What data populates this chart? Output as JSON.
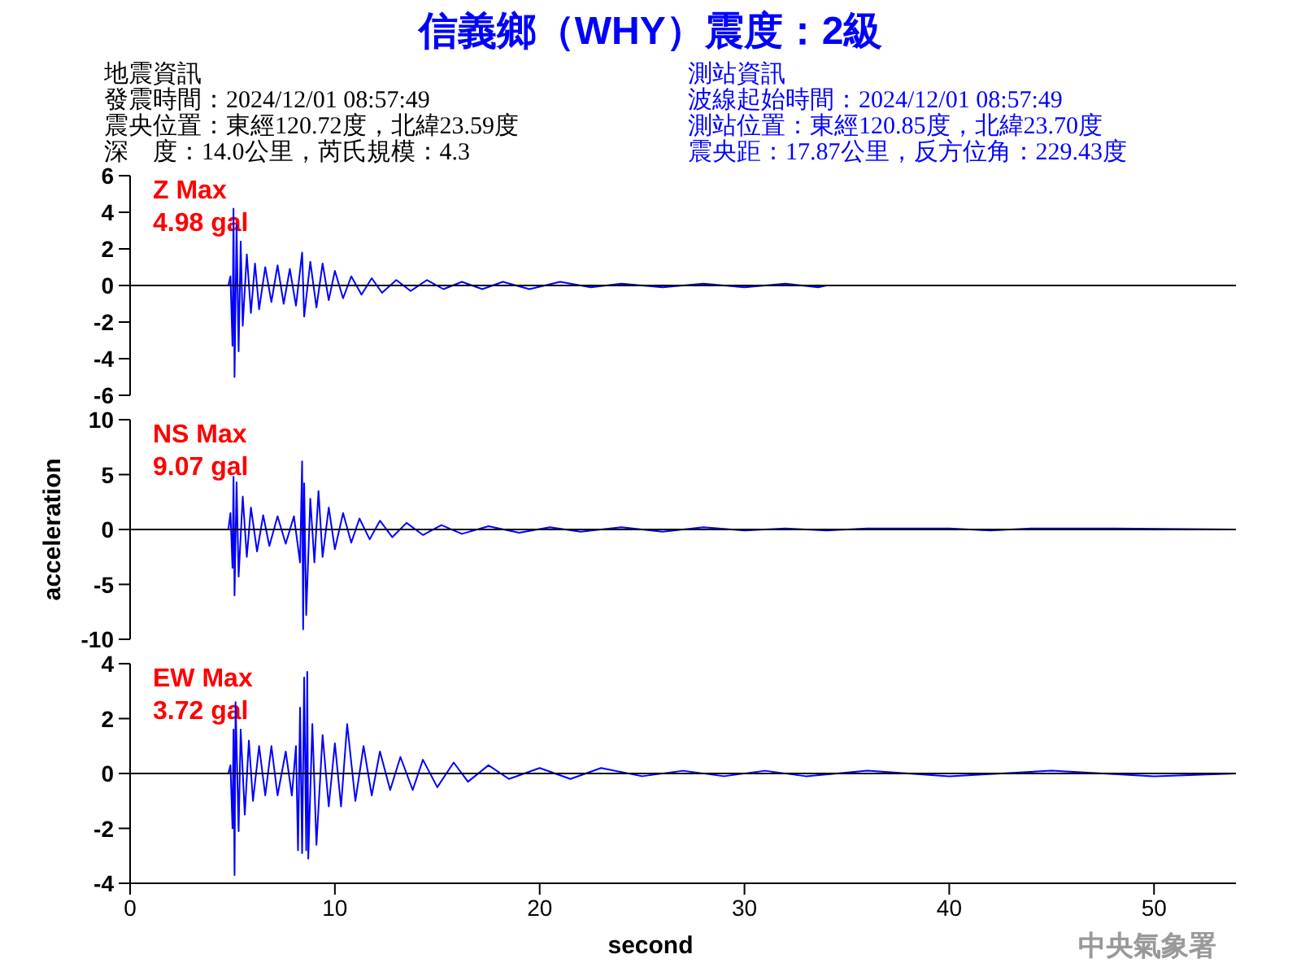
{
  "chart_data": [
    {
      "type": "line",
      "title": "信義鄉（WHY）震度：2級",
      "annotations": [
        "Z Max\n4.98 gal",
        "地震資訊",
        "發震時間：2024/12/01 08:57:49",
        "震央位置：東經120.72度，北緯23.59度",
        "深　度：14.0公里，芮氏規模：4.3",
        "測站資訊",
        "波線起始時間：2024/12/01 08:57:49",
        "測站位置：東經120.85度，北緯23.70度",
        "震央距：17.87公里，反方位角：229.43度"
      ],
      "x": [
        0,
        4.8,
        4.9,
        5.0,
        5.05,
        5.1,
        5.2,
        5.3,
        5.4,
        5.5,
        5.7,
        5.9,
        6.1,
        6.3,
        6.6,
        6.9,
        7.2,
        7.5,
        7.8,
        8.1,
        8.4,
        8.5,
        8.8,
        9.1,
        9.4,
        9.7,
        10.0,
        10.4,
        10.8,
        11.3,
        11.8,
        12.3,
        13,
        13.7,
        14.5,
        15.3,
        16.2,
        17.2,
        18.2,
        19.5,
        21,
        22.5,
        24,
        26,
        28,
        30,
        32,
        33.6,
        34,
        54
      ],
      "series": [
        {
          "color": "#0000ff",
          "values": [
            0,
            0,
            0.5,
            -3.3,
            4.2,
            -5.0,
            3.3,
            -3.6,
            2.4,
            -2.2,
            1.7,
            -1.5,
            1.2,
            -1.3,
            1.0,
            -0.9,
            1.1,
            -1.0,
            0.9,
            -1.1,
            1.8,
            -1.7,
            1.3,
            -1.2,
            1.2,
            -0.8,
            0.8,
            -0.7,
            0.5,
            -0.5,
            0.4,
            -0.4,
            0.3,
            -0.3,
            0.3,
            -0.2,
            0.2,
            -0.2,
            0.2,
            -0.2,
            0.2,
            -0.1,
            0.1,
            -0.1,
            0.1,
            -0.1,
            0.1,
            -0.1,
            0,
            0
          ]
        }
      ],
      "xlim": [
        0,
        54
      ],
      "ylim": [
        -6,
        6
      ],
      "yticks": [
        -6,
        -4,
        -2,
        0,
        2,
        4,
        6
      ],
      "tick_labels": "y",
      "ref_lines": [
        {
          "axis": "y",
          "value": 0,
          "color": "#000000"
        }
      ]
    },
    {
      "type": "line",
      "ylabel": "acceleration",
      "annotations": [
        "NS Max\n9.07 gal"
      ],
      "x": [
        0,
        4.8,
        4.9,
        5.0,
        5.05,
        5.1,
        5.2,
        5.3,
        5.5,
        5.7,
        5.9,
        6.2,
        6.5,
        6.8,
        7.2,
        7.6,
        8.0,
        8.3,
        8.4,
        8.45,
        8.5,
        8.6,
        8.8,
        9.0,
        9.2,
        9.4,
        9.7,
        10,
        10.4,
        10.8,
        11.2,
        11.7,
        12.2,
        12.8,
        13.5,
        14.3,
        15.2,
        16.2,
        17.5,
        19,
        20.5,
        22,
        24,
        26,
        28,
        30,
        32,
        34,
        36,
        38,
        40,
        42,
        44,
        46,
        48,
        54
      ],
      "series": [
        {
          "color": "#0000ff",
          "values": [
            0,
            0,
            1.5,
            -3.5,
            4.8,
            -6.0,
            4.3,
            -4.3,
            3.0,
            -2.5,
            2.0,
            -2.0,
            1.3,
            -1.5,
            1.2,
            -1.3,
            1.2,
            -3.0,
            6.2,
            -9.1,
            4.2,
            -7.8,
            2.8,
            -3.0,
            3.5,
            -2.5,
            2.0,
            -1.8,
            1.5,
            -1.2,
            1.0,
            -0.9,
            0.8,
            -0.7,
            0.6,
            -0.5,
            0.4,
            -0.4,
            0.3,
            -0.3,
            0.2,
            -0.2,
            0.2,
            -0.2,
            0.2,
            -0.1,
            0.1,
            -0.1,
            0.1,
            0.1,
            0.1,
            -0.1,
            0.1,
            0.1,
            0.1,
            0
          ]
        }
      ],
      "xlim": [
        0,
        54
      ],
      "ylim": [
        -10,
        10
      ],
      "yticks": [
        -10,
        -5,
        0,
        5,
        10
      ],
      "tick_labels": "y",
      "ref_lines": [
        {
          "axis": "y",
          "value": 0,
          "color": "#000000"
        }
      ]
    },
    {
      "type": "line",
      "xlabel": "second",
      "annotations": [
        "EW Max\n3.72 gal",
        "中央氣象署"
      ],
      "x": [
        0,
        4.8,
        4.9,
        5.0,
        5.05,
        5.1,
        5.15,
        5.3,
        5.4,
        5.6,
        5.8,
        6.0,
        6.3,
        6.6,
        6.9,
        7.2,
        7.6,
        7.9,
        8.1,
        8.2,
        8.3,
        8.4,
        8.5,
        8.6,
        8.65,
        8.7,
        8.9,
        9.1,
        9.4,
        9.7,
        10.0,
        10.3,
        10.6,
        11.0,
        11.4,
        11.8,
        12.2,
        12.7,
        13.2,
        13.8,
        14.3,
        15,
        15.8,
        16.5,
        17.5,
        18.5,
        20,
        21.5,
        23,
        25,
        27,
        29,
        31,
        33,
        36,
        40,
        45,
        50,
        54
      ],
      "series": [
        {
          "color": "#0000ff",
          "values": [
            0,
            0,
            0.3,
            -2.0,
            1.6,
            -3.7,
            2.6,
            -2.1,
            1.6,
            -1.5,
            1.2,
            -1.0,
            1.0,
            -0.8,
            1.0,
            -0.8,
            0.8,
            -0.8,
            1.0,
            -2.8,
            2.4,
            -2.9,
            3.5,
            -2.8,
            3.7,
            -3.1,
            1.8,
            -2.6,
            1.4,
            -1.2,
            1.1,
            -1.2,
            1.8,
            -1.0,
            1.0,
            -0.8,
            0.8,
            -0.6,
            0.6,
            -0.6,
            0.5,
            -0.5,
            0.4,
            -0.3,
            0.3,
            -0.2,
            0.2,
            -0.2,
            0.2,
            -0.1,
            0.1,
            -0.1,
            0.1,
            -0.1,
            0.1,
            -0.1,
            0.1,
            -0.1,
            0
          ]
        }
      ],
      "xlim": [
        0,
        54
      ],
      "xticks": [
        0,
        10,
        20,
        30,
        40,
        50
      ],
      "ylim": [
        -4,
        4
      ],
      "yticks": [
        -4,
        -2,
        0,
        2,
        4
      ],
      "ref_lines": [
        {
          "axis": "y",
          "value": 0,
          "color": "#000000"
        }
      ]
    }
  ]
}
